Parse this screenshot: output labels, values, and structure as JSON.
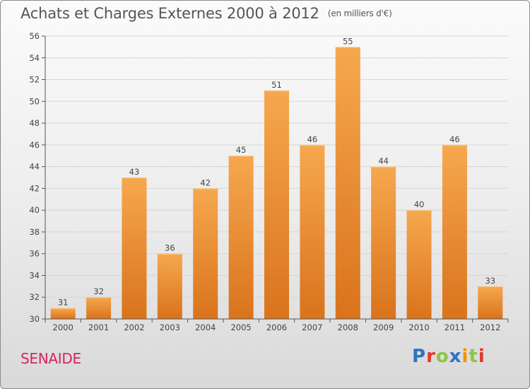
{
  "header": {
    "title": "Achats et Charges Externes 2000 à 2012",
    "unit": "(en milliers d'€)"
  },
  "commune": "SENAIDE",
  "logo": {
    "text": "Proxiti",
    "letters": [
      "P",
      "r",
      "o",
      "x",
      "i",
      "t",
      "i"
    ],
    "colors": [
      "#2f74c0",
      "#e0392c",
      "#8cc63f",
      "#2f74c0",
      "#f39200",
      "#8cc63f",
      "#e0392c"
    ]
  },
  "colors": {
    "bar_top": "#f6a84e",
    "bar_bottom": "#d9731c",
    "grid": "#d6d6d6"
  },
  "chart_data": {
    "type": "bar",
    "title": "Achats et Charges Externes 2000 à 2012",
    "subtitle": "(en milliers d'€)",
    "xlabel": "",
    "ylabel": "",
    "categories": [
      "2000",
      "2001",
      "2002",
      "2003",
      "2004",
      "2005",
      "2006",
      "2007",
      "2008",
      "2009",
      "2010",
      "2011",
      "2012"
    ],
    "values": [
      31,
      32,
      43,
      36,
      42,
      45,
      51,
      46,
      55,
      44,
      40,
      46,
      33
    ],
    "ylim": [
      30,
      56
    ],
    "yticks": [
      30,
      32,
      34,
      36,
      38,
      40,
      42,
      44,
      46,
      48,
      50,
      52,
      54,
      56
    ],
    "grid": true,
    "legend": "none"
  }
}
